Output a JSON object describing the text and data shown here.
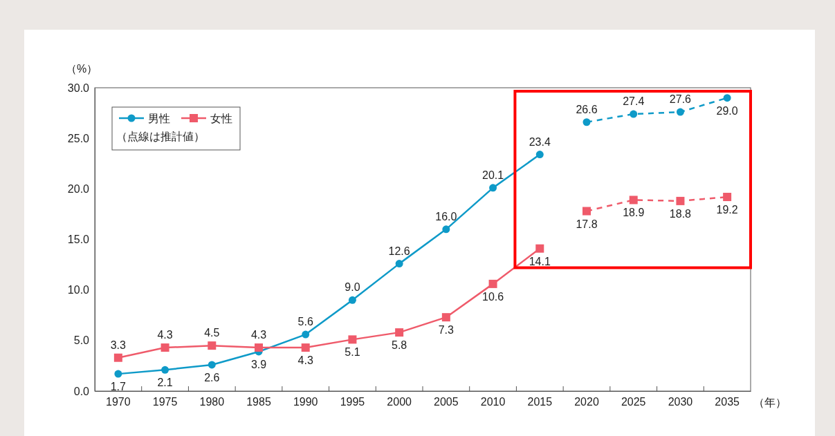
{
  "chart_data": {
    "type": "line",
    "ylabel": "（%）",
    "xlabel": "（年）",
    "categories": [
      "1970",
      "1975",
      "1980",
      "1985",
      "1990",
      "1995",
      "2000",
      "2005",
      "2010",
      "2015",
      "2020",
      "2025",
      "2030",
      "2035"
    ],
    "series": [
      {
        "name": "男性",
        "color": "#0e9ac8",
        "line_style": "solid",
        "values": [
          1.7,
          2.1,
          2.6,
          3.9,
          5.6,
          9.0,
          12.6,
          16.0,
          20.1,
          23.4,
          null,
          null,
          null,
          null
        ],
        "value_labels": [
          "1.7",
          "2.1",
          "2.6",
          "3.9",
          "5.6",
          "9.0",
          "12.6",
          "16.0",
          "20.1",
          "23.4",
          null,
          null,
          null,
          null
        ]
      },
      {
        "name": "女性",
        "color": "#ef5a6a",
        "line_style": "solid",
        "marker": "square",
        "values": [
          3.3,
          4.3,
          4.5,
          4.3,
          4.3,
          5.1,
          5.8,
          7.3,
          10.6,
          14.1,
          null,
          null,
          null,
          null
        ],
        "value_labels": [
          "3.3",
          "4.3",
          "4.5",
          "4.3",
          "4.3",
          "5.1",
          "5.8",
          "7.3",
          "10.6",
          "14.1",
          null,
          null,
          null,
          null
        ]
      },
      {
        "color": "#0e9ac8",
        "line_style": "dashed",
        "values": [
          null,
          null,
          null,
          null,
          null,
          null,
          null,
          null,
          null,
          null,
          26.6,
          27.4,
          27.6,
          29.0
        ],
        "value_labels": [
          null,
          null,
          null,
          null,
          null,
          null,
          null,
          null,
          null,
          null,
          "26.6",
          "27.4",
          "27.6",
          "29.0"
        ]
      },
      {
        "color": "#ef5a6a",
        "line_style": "dashed",
        "marker": "square",
        "values": [
          null,
          null,
          null,
          null,
          null,
          null,
          null,
          null,
          null,
          null,
          17.8,
          18.9,
          18.8,
          19.2
        ],
        "value_labels": [
          null,
          null,
          null,
          null,
          null,
          null,
          null,
          null,
          null,
          null,
          "17.8",
          "18.9",
          "18.8",
          "19.2"
        ]
      }
    ],
    "marker": "circle",
    "ylim": [
      0,
      30
    ],
    "yticks": [
      {
        "value": 0,
        "label": "0.0"
      },
      {
        "value": 5,
        "label": "5.0"
      },
      {
        "value": 10,
        "label": "10.0"
      },
      {
        "value": 15,
        "label": "15.0"
      },
      {
        "value": 20,
        "label": "20.0"
      },
      {
        "value": 25,
        "label": "25.0"
      },
      {
        "value": 30,
        "label": "30.0"
      }
    ],
    "grid": false,
    "legend": "top left",
    "annotations": [
      "（点線は推計値）"
    ]
  }
}
